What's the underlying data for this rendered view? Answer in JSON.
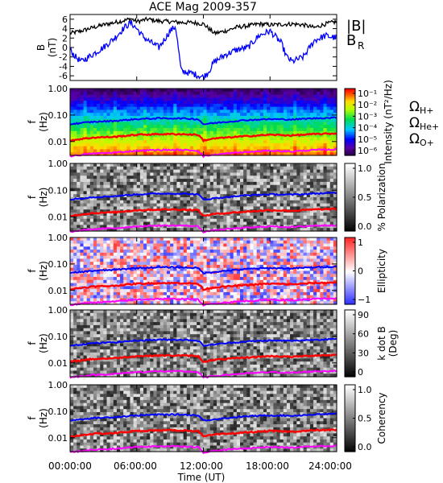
{
  "title": "ACE Mag 2009-357",
  "xlabel": "Time (UT)",
  "x_ticks": [
    "00:00:00",
    "06:00:00",
    "12:00:00",
    "18:00:00",
    "24:00:00"
  ],
  "colors": {
    "B_total": "#000000",
    "B_R": "#0000ff",
    "H": "#0000ff",
    "He": "#ff0000",
    "O": "#ff00ff"
  },
  "chart_data": [
    {
      "type": "line",
      "panel": "B",
      "ylabel": [
        "B",
        "(nT)"
      ],
      "ylim": [
        -7,
        7
      ],
      "y_ticks": [
        "6",
        "4",
        "2",
        "0",
        "-2",
        "-4",
        "-6"
      ],
      "xlim_hours": [
        0,
        24
      ],
      "series": [
        {
          "name": "|B|",
          "x": [
            0,
            1,
            2,
            3,
            4,
            5,
            5.5,
            6,
            7,
            8,
            9,
            10,
            11,
            12,
            13,
            14,
            15,
            16,
            17,
            18,
            19,
            20,
            21,
            22,
            23,
            24
          ],
          "values": [
            3.0,
            3.5,
            4.2,
            4.8,
            5.3,
            5.8,
            6.1,
            5.5,
            6.0,
            5.6,
            5.5,
            5.3,
            5.3,
            5.0,
            3.0,
            3.5,
            4.3,
            4.6,
            5.0,
            4.8,
            4.9,
            5.0,
            4.8,
            4.2,
            5.0,
            5.5
          ]
        },
        {
          "name": "B_R",
          "x": [
            0,
            0.5,
            1,
            2,
            3,
            4,
            5,
            5.5,
            6,
            6.5,
            7,
            8,
            9,
            9.5,
            10,
            11,
            12,
            12.5,
            13,
            14,
            15,
            16,
            17,
            18,
            19,
            19.5,
            20,
            21,
            22,
            23,
            24
          ],
          "values": [
            -0.5,
            -2.0,
            -3.0,
            -1.5,
            0.0,
            2.0,
            4.5,
            5.2,
            4.0,
            2.5,
            1.5,
            0.0,
            3.5,
            4.5,
            -5.0,
            -5.5,
            -6.3,
            -5.0,
            -3.0,
            -1.5,
            -0.5,
            0.0,
            2.5,
            3.5,
            1.0,
            -2.0,
            -3.0,
            -2.0,
            1.5,
            2.5,
            2.0
          ]
        }
      ],
      "legend": [
        "|B|",
        "B",
        "R"
      ]
    },
    {
      "type": "heatmap",
      "panel": "Intensity",
      "ylabel": [
        "f",
        "(Hz)"
      ],
      "y_ticks": [
        "1.00",
        "0.10",
        "0.01"
      ],
      "ylim": [
        0.003,
        1.0
      ],
      "colorbar_label": "Intensity (nT²/Hz)",
      "colorbar_ticks": [
        "10⁻¹",
        "10⁻²",
        "10⁻³",
        "10⁻⁴",
        "10⁻⁵",
        "10⁻⁶"
      ],
      "colorbar_range": [
        -6.5,
        -0.5
      ],
      "legend": [
        {
          "sym": "Ω",
          "sub": "H+",
          "color": "#0000ff"
        },
        {
          "sym": "Ω",
          "sub": "He+",
          "color": "#ff0000"
        },
        {
          "sym": "Ω",
          "sub": "O+",
          "color": "#ff00ff"
        }
      ]
    },
    {
      "type": "heatmap",
      "panel": "Polarization",
      "ylabel": [
        "f",
        "(Hz)"
      ],
      "y_ticks": [
        "1.00",
        "0.10",
        "0.01"
      ],
      "ylim": [
        0.003,
        1.0
      ],
      "colorbar_label": "% Polarization",
      "colorbar_ticks": [
        "1.0",
        "0.5",
        "0.0"
      ],
      "colorbar_range": [
        0.0,
        1.0
      ]
    },
    {
      "type": "heatmap",
      "panel": "Ellipticity",
      "ylabel": [
        "f",
        "(Hz)"
      ],
      "y_ticks": [
        "1.00",
        "0.10",
        "0.01"
      ],
      "ylim": [
        0.003,
        1.0
      ],
      "colorbar_label": "Ellipticity",
      "colorbar_ticks": [
        "1",
        "0",
        "−1"
      ],
      "colorbar_range": [
        -1,
        1
      ]
    },
    {
      "type": "heatmap",
      "panel": "k dot B",
      "ylabel": [
        "f",
        "(Hz)"
      ],
      "y_ticks": [
        "1.00",
        "0.10",
        "0.01"
      ],
      "ylim": [
        0.003,
        1.0
      ],
      "colorbar_label": [
        "k dot B",
        "(Deg)"
      ],
      "colorbar_ticks": [
        "90",
        "60",
        "30",
        "0"
      ],
      "colorbar_range": [
        0,
        90
      ]
    },
    {
      "type": "heatmap",
      "panel": "Coherency",
      "ylabel": [
        "f",
        "(Hz)"
      ],
      "y_ticks": [
        "1.00",
        "0.10",
        "0.01"
      ],
      "ylim": [
        0.003,
        1.0
      ],
      "colorbar_label": "Coherency",
      "colorbar_ticks": [
        "1.0",
        "0.5",
        "0.0"
      ],
      "colorbar_range": [
        0.0,
        1.0
      ]
    }
  ],
  "gyrofrequency_lines_hz": {
    "x_hours": [
      0,
      2,
      4,
      6,
      8,
      10,
      11.5,
      12,
      13,
      14,
      15,
      16,
      18,
      20,
      22,
      24
    ],
    "H": [
      0.045,
      0.055,
      0.06,
      0.07,
      0.075,
      0.075,
      0.07,
      0.045,
      0.05,
      0.055,
      0.06,
      0.065,
      0.07,
      0.068,
      0.075,
      0.08
    ],
    "He": [
      0.011,
      0.014,
      0.015,
      0.018,
      0.019,
      0.019,
      0.018,
      0.011,
      0.013,
      0.014,
      0.015,
      0.016,
      0.018,
      0.017,
      0.019,
      0.02
    ],
    "O": [
      0.0028,
      0.0035,
      0.0038,
      0.0045,
      0.0048,
      0.0048,
      0.0045,
      0.0028,
      0.0032,
      0.0035,
      0.0038,
      0.004,
      0.0045,
      0.0042,
      0.0048,
      0.005
    ]
  }
}
